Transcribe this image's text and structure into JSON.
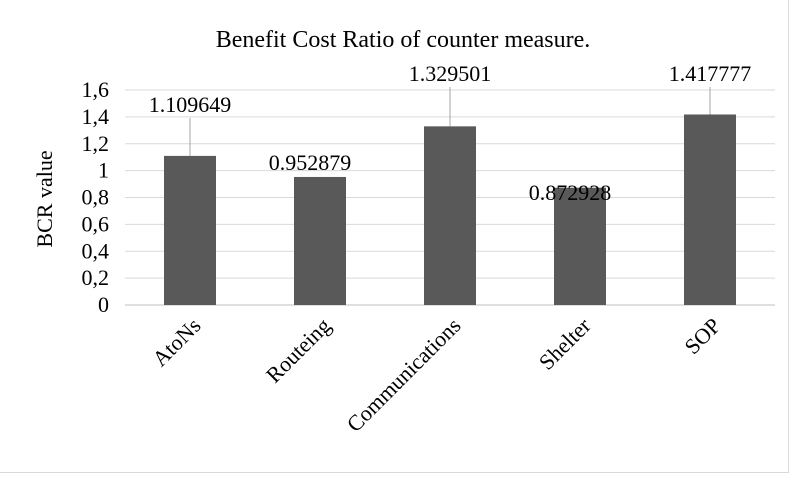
{
  "chart_data": {
    "type": "bar",
    "title": "Benefit Cost Ratio of counter measure.",
    "xlabel": "",
    "ylabel": "BCR value",
    "categories": [
      "AtoNs",
      "Routeing",
      "Communications",
      "Shelter",
      "SOP"
    ],
    "values": [
      1.109649,
      0.952879,
      1.329501,
      0.872928,
      1.417777
    ],
    "data_labels": [
      "1.109649",
      "0.952879",
      "1.329501",
      "0.872928",
      "1.417777"
    ],
    "ylim": [
      0,
      1.6
    ],
    "yticks": [
      0,
      0.2,
      0.4,
      0.6,
      0.8,
      1,
      1.2,
      1.4,
      1.6
    ],
    "ytick_labels": [
      "0",
      "0,2",
      "0,4",
      "0,6",
      "0,8",
      "1",
      "1,2",
      "1,4",
      "1,6"
    ],
    "grid": true,
    "legend": "none",
    "bar_color": "#595959",
    "grid_color": "#d9d9d9"
  }
}
